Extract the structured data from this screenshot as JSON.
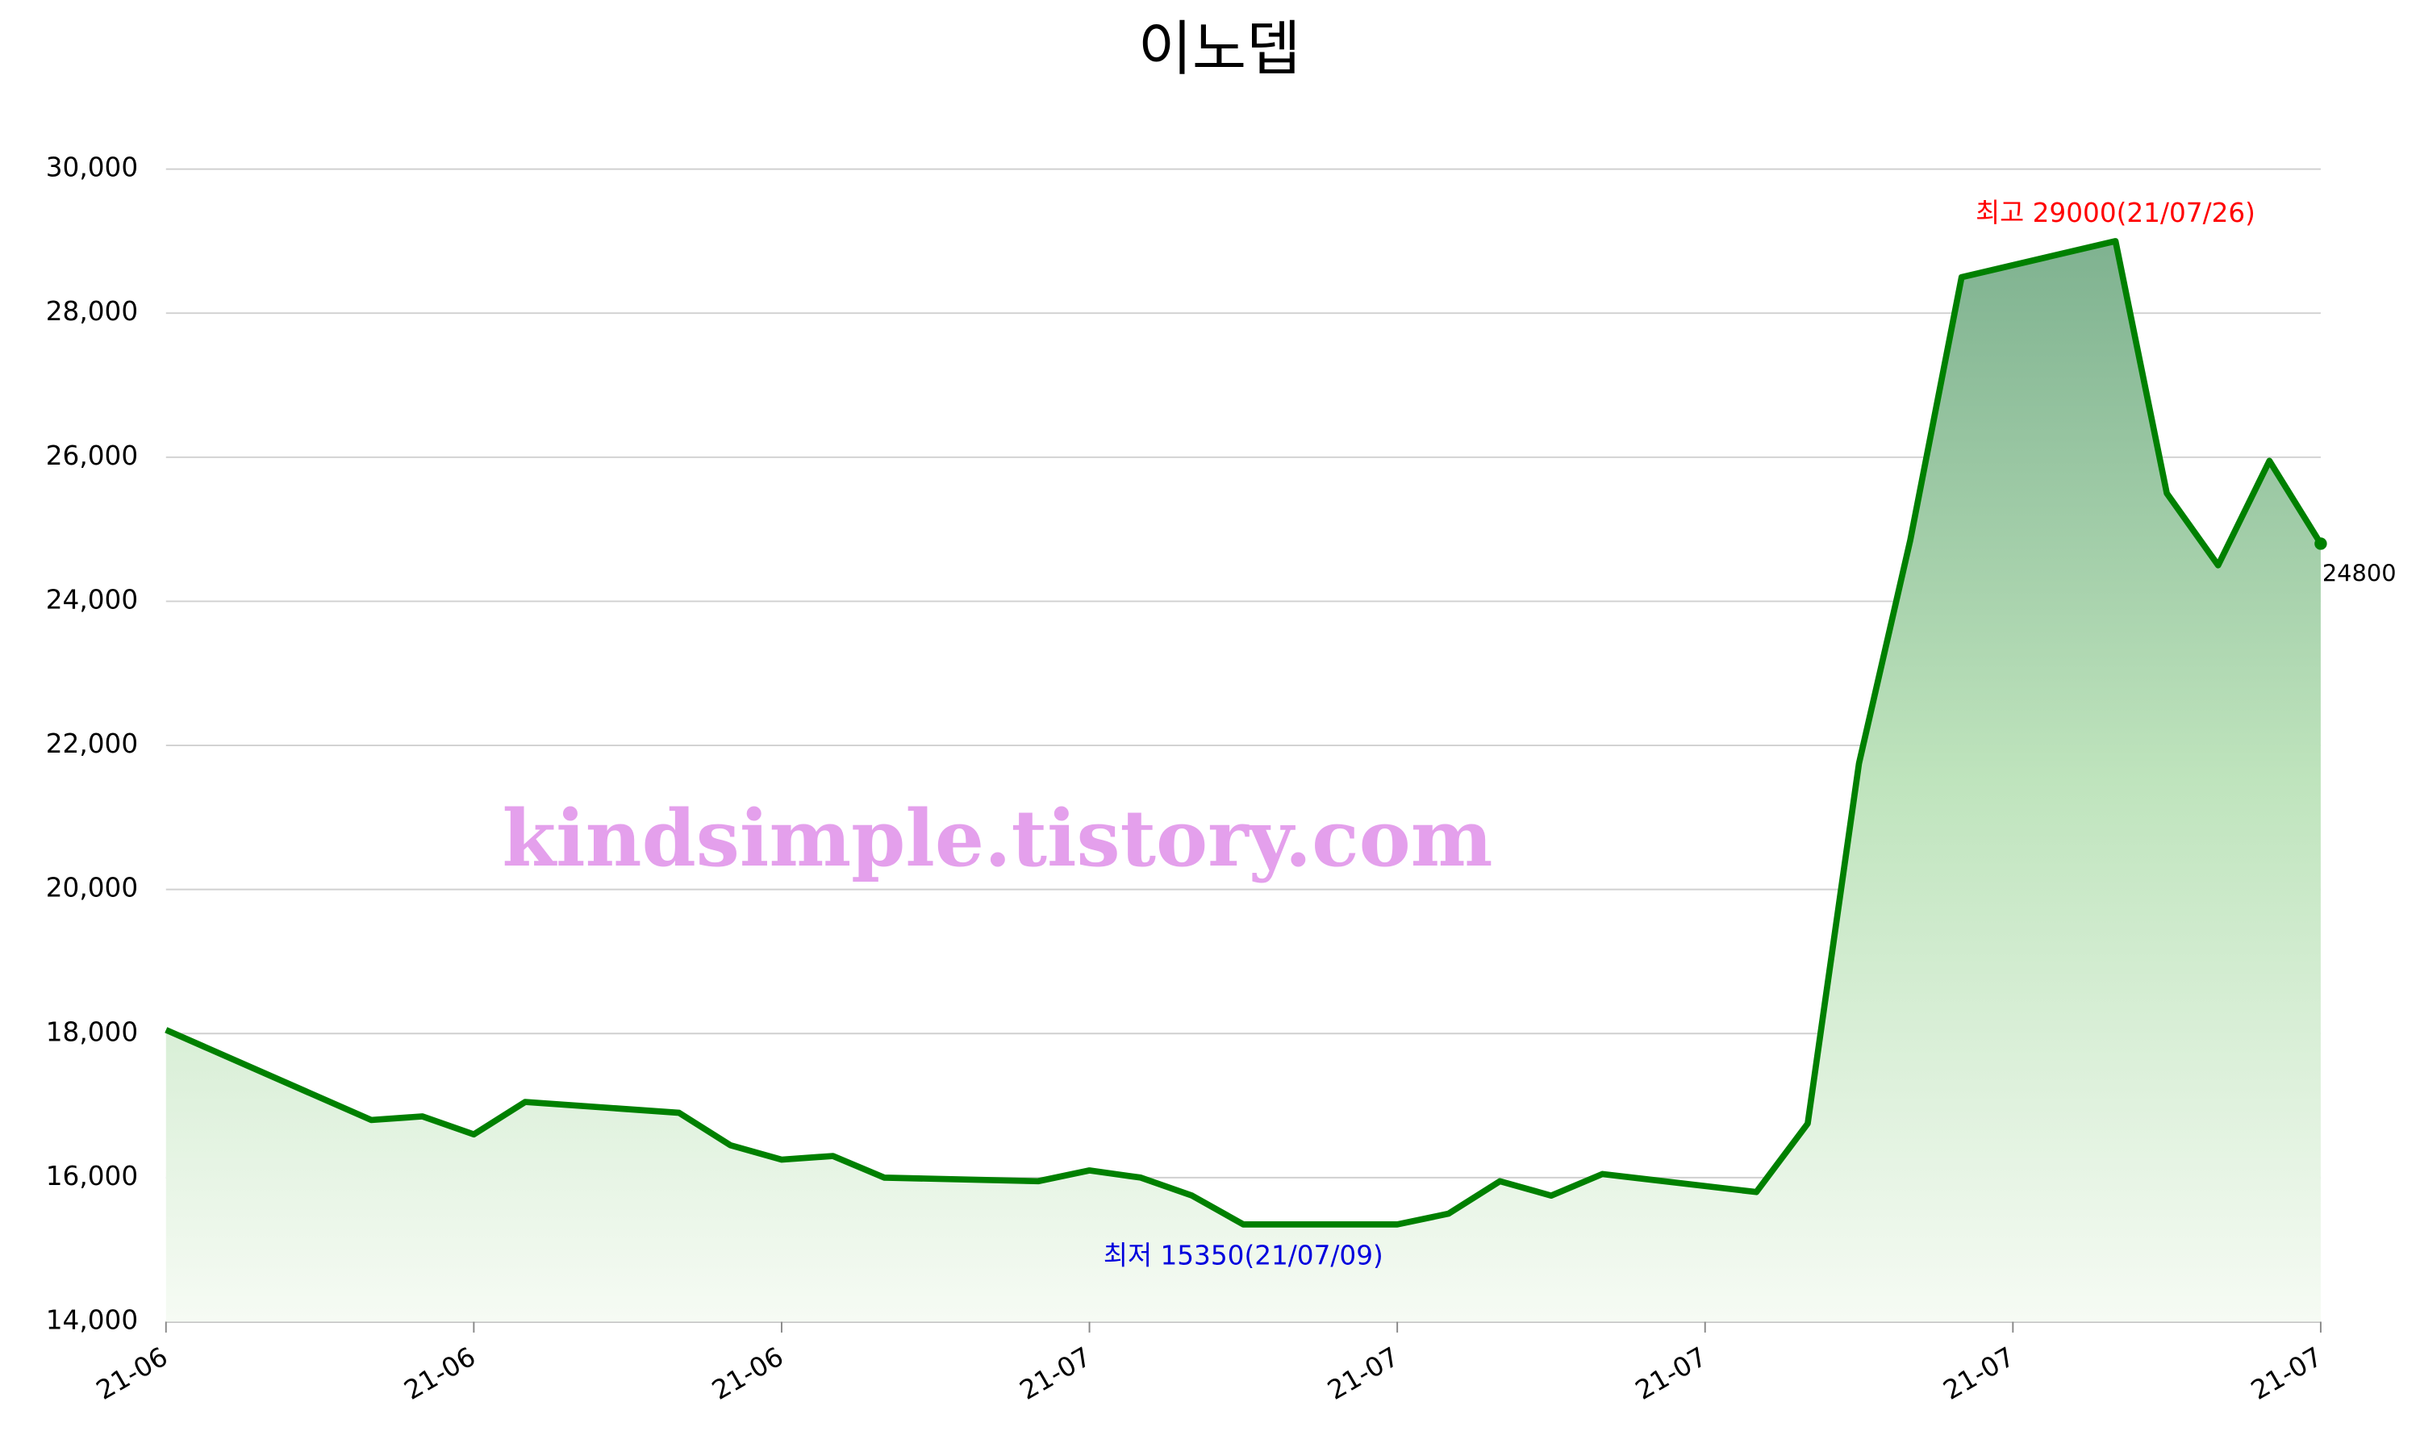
{
  "chart_data": {
    "type": "area",
    "title": "이노뎁",
    "x": [
      "2021-06-18",
      "2021-06-22",
      "2021-06-23",
      "2021-06-24",
      "2021-06-25",
      "2021-06-28",
      "2021-06-29",
      "2021-06-30",
      "2021-07-01",
      "2021-07-02",
      "2021-07-05",
      "2021-07-06",
      "2021-07-07",
      "2021-07-08",
      "2021-07-09",
      "2021-07-12",
      "2021-07-13",
      "2021-07-14",
      "2021-07-15",
      "2021-07-16",
      "2021-07-19",
      "2021-07-20",
      "2021-07-21",
      "2021-07-22",
      "2021-07-23",
      "2021-07-26",
      "2021-07-27",
      "2021-07-28",
      "2021-07-29",
      "2021-07-30"
    ],
    "series": [
      {
        "color": "#008000",
        "values": [
          18050,
          16800,
          16850,
          16600,
          17050,
          16900,
          16450,
          16250,
          16300,
          16000,
          15950,
          16100,
          16000,
          15750,
          15350,
          15350,
          15500,
          15950,
          15750,
          16050,
          15800,
          16750,
          21750,
          24850,
          28500,
          29000,
          25500,
          24500,
          25950,
          24800
        ]
      }
    ],
    "xlim": [
      "2021-06-18",
      "2021-07-30"
    ],
    "xticks": [
      {
        "value": "2021-06-18",
        "label": "21-06"
      },
      {
        "value": "2021-06-24",
        "label": "21-06"
      },
      {
        "value": "2021-06-30",
        "label": "21-06"
      },
      {
        "value": "2021-07-06",
        "label": "21-07"
      },
      {
        "value": "2021-07-12",
        "label": "21-07"
      },
      {
        "value": "2021-07-18",
        "label": "21-07"
      },
      {
        "value": "2021-07-24",
        "label": "21-07"
      },
      {
        "value": "2021-07-30",
        "label": "21-07"
      }
    ],
    "ylim": [
      14000,
      30000
    ],
    "yticks": [
      {
        "value": 14000,
        "label": "14,000"
      },
      {
        "value": 16000,
        "label": "16,000"
      },
      {
        "value": 18000,
        "label": "18,000"
      },
      {
        "value": 20000,
        "label": "20,000"
      },
      {
        "value": 22000,
        "label": "22,000"
      },
      {
        "value": 24000,
        "label": "24,000"
      },
      {
        "value": 26000,
        "label": "26,000"
      },
      {
        "value": 28000,
        "label": "28,000"
      },
      {
        "value": 30000,
        "label": "30,000"
      }
    ],
    "grid": true,
    "annotations": [
      {
        "text": "최고 29000(21/07/26)",
        "color": "#ff0000"
      },
      {
        "text": "최저 15350(21/07/09)",
        "color": "#0000dd"
      }
    ],
    "watermark": {
      "text": "kindsimple.tistory.com",
      "color": "#e4a0ec"
    }
  }
}
